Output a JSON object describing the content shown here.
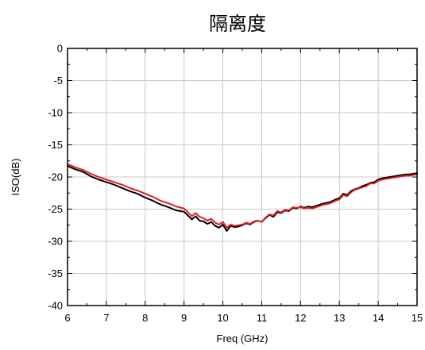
{
  "chart_data": {
    "type": "line",
    "title": "隔离度",
    "xlabel": "Freq (GHz)",
    "ylabel": "ISO(dB)",
    "xlim": [
      6,
      15
    ],
    "ylim": [
      -40,
      0
    ],
    "xticks": [
      6,
      7,
      8,
      9,
      10,
      11,
      12,
      13,
      14,
      15
    ],
    "yticks": [
      0,
      -5,
      -10,
      -15,
      -20,
      -25,
      -30,
      -35,
      -40
    ],
    "xtick_labels": [
      "6",
      "7",
      "8",
      "9",
      "10",
      "11",
      "12",
      "13",
      "14",
      "15"
    ],
    "ytick_labels": [
      "0",
      "-5",
      "-10",
      "-15",
      "-20",
      "-25",
      "-30",
      "-35",
      "-40"
    ],
    "grid": true,
    "legend": "none",
    "series": [
      {
        "color": "#000000",
        "x": [
          6.0,
          6.2,
          6.4,
          6.6,
          6.8,
          7.0,
          7.2,
          7.4,
          7.6,
          7.8,
          8.0,
          8.2,
          8.4,
          8.6,
          8.8,
          9.0,
          9.1,
          9.2,
          9.3,
          9.4,
          9.5,
          9.6,
          9.7,
          9.8,
          9.9,
          10.0,
          10.1,
          10.2,
          10.3,
          10.4,
          10.5,
          10.6,
          10.7,
          10.8,
          10.9,
          11.0,
          11.1,
          11.2,
          11.3,
          11.4,
          11.5,
          11.6,
          11.7,
          11.8,
          11.9,
          12.0,
          12.1,
          12.2,
          12.3,
          12.4,
          12.5,
          12.6,
          12.7,
          12.8,
          12.9,
          13.0,
          13.1,
          13.2,
          13.3,
          13.4,
          13.5,
          13.6,
          13.7,
          13.8,
          13.9,
          14.0,
          14.1,
          14.2,
          14.3,
          14.4,
          14.5,
          14.6,
          14.7,
          14.8,
          14.9,
          15.0
        ],
        "y": [
          -18.3,
          -18.8,
          -19.2,
          -19.9,
          -20.4,
          -20.8,
          -21.2,
          -21.7,
          -22.2,
          -22.6,
          -23.2,
          -23.7,
          -24.3,
          -24.7,
          -25.2,
          -25.4,
          -26.0,
          -26.6,
          -26.1,
          -26.8,
          -26.9,
          -27.3,
          -27.0,
          -27.6,
          -27.9,
          -27.4,
          -28.4,
          -27.6,
          -27.8,
          -27.7,
          -27.5,
          -27.2,
          -27.4,
          -27.0,
          -26.8,
          -27.0,
          -26.4,
          -25.9,
          -26.2,
          -25.5,
          -25.6,
          -25.2,
          -25.3,
          -24.8,
          -24.9,
          -24.6,
          -24.8,
          -24.6,
          -24.7,
          -24.5,
          -24.3,
          -24.1,
          -24.0,
          -23.8,
          -23.5,
          -23.3,
          -22.6,
          -22.8,
          -22.2,
          -21.9,
          -21.7,
          -21.4,
          -21.2,
          -20.9,
          -20.8,
          -20.4,
          -20.2,
          -20.1,
          -20.0,
          -19.9,
          -19.8,
          -19.7,
          -19.6,
          -19.6,
          -19.5,
          -19.4
        ]
      },
      {
        "color": "#e02020",
        "x": [
          6.0,
          6.2,
          6.4,
          6.6,
          6.8,
          7.0,
          7.2,
          7.4,
          7.6,
          7.8,
          8.0,
          8.2,
          8.4,
          8.6,
          8.8,
          9.0,
          9.1,
          9.2,
          9.3,
          9.4,
          9.5,
          9.6,
          9.7,
          9.8,
          9.9,
          10.0,
          10.1,
          10.2,
          10.3,
          10.4,
          10.5,
          10.6,
          10.7,
          10.8,
          10.9,
          11.0,
          11.1,
          11.2,
          11.3,
          11.4,
          11.5,
          11.6,
          11.7,
          11.8,
          11.9,
          12.0,
          12.1,
          12.2,
          12.3,
          12.4,
          12.5,
          12.6,
          12.7,
          12.8,
          12.9,
          13.0,
          13.1,
          13.2,
          13.3,
          13.4,
          13.5,
          13.6,
          13.7,
          13.8,
          13.9,
          14.0,
          14.1,
          14.2,
          14.3,
          14.4,
          14.5,
          14.6,
          14.7,
          14.8,
          14.9,
          15.0
        ],
        "y": [
          -18.0,
          -18.5,
          -18.9,
          -19.5,
          -20.0,
          -20.4,
          -20.8,
          -21.2,
          -21.7,
          -22.1,
          -22.6,
          -23.1,
          -23.7,
          -24.1,
          -24.6,
          -24.9,
          -25.5,
          -26.1,
          -25.6,
          -26.2,
          -26.4,
          -26.8,
          -26.5,
          -27.1,
          -27.4,
          -27.0,
          -27.9,
          -27.4,
          -27.6,
          -27.5,
          -27.4,
          -27.1,
          -27.3,
          -26.9,
          -26.8,
          -27.0,
          -26.3,
          -25.8,
          -26.0,
          -25.3,
          -25.5,
          -25.1,
          -25.2,
          -24.7,
          -24.8,
          -24.7,
          -24.9,
          -24.8,
          -24.9,
          -24.7,
          -24.5,
          -24.3,
          -24.2,
          -24.0,
          -23.7,
          -23.5,
          -22.8,
          -23.0,
          -22.4,
          -22.0,
          -21.8,
          -21.6,
          -21.4,
          -21.0,
          -21.0,
          -20.6,
          -20.4,
          -20.3,
          -20.2,
          -20.1,
          -20.0,
          -19.9,
          -19.8,
          -19.8,
          -19.7,
          -19.6
        ]
      }
    ]
  }
}
